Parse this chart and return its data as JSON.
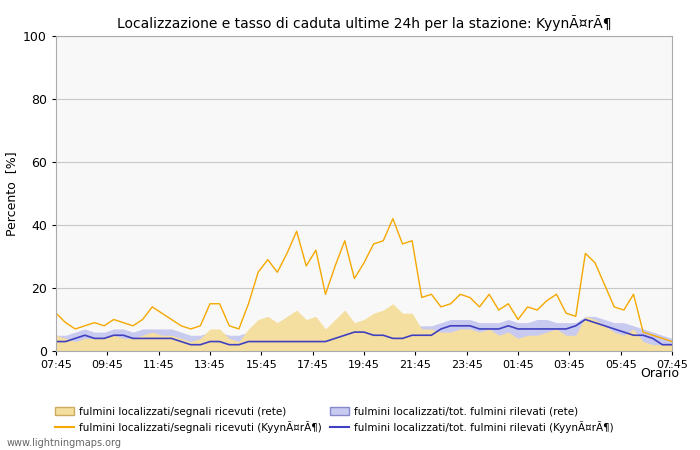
{
  "title": "Localizzazione e tasso di caduta ultime 24h per la stazione: KyynÃ¤rÃ¶",
  "ylabel": "Percento  [%]",
  "xlabel": "Orario",
  "watermark": "www.lightningmaps.org",
  "ylim": [
    0,
    100
  ],
  "xtick_labels": [
    "07:45",
    "09:45",
    "11:45",
    "13:45",
    "15:45",
    "17:45",
    "19:45",
    "21:45",
    "23:45",
    "01:45",
    "03:45",
    "05:45",
    "07:45"
  ],
  "legend": [
    {
      "label": "fulmini localizzati/segnali ricevuti (rete)",
      "color": "#f5dfa0",
      "type": "fill"
    },
    {
      "label": "fulmini localizzati/segnali ricevuti (KyynÃ¤rÃ¶)",
      "color": "#f5a800",
      "type": "line"
    },
    {
      "label": "fulmini localizzati/tot. fulmini rilevati (rete)",
      "color": "#c8caf0",
      "type": "fill"
    },
    {
      "label": "fulmini localizzati/tot. fulmini rilevati (KyynÃ¤rÃ¶)",
      "color": "#4040c0",
      "type": "line"
    }
  ],
  "orange_fill_color": "#f5dfa0",
  "orange_line_color": "#f5a800",
  "blue_fill_color": "#c8caf0",
  "blue_line_color": "#4040c0",
  "grid_color": "#c8c8c8",
  "bg_color": "#ffffff",
  "plot_bg_color": "#f8f8f8",
  "orange_line": [
    12,
    9,
    7,
    8,
    9,
    8,
    10,
    9,
    8,
    10,
    14,
    12,
    10,
    8,
    7,
    8,
    15,
    15,
    8,
    7,
    15,
    25,
    29,
    25,
    31,
    38,
    27,
    32,
    18,
    27,
    35,
    23,
    28,
    34,
    35,
    42,
    34,
    35,
    17,
    18,
    14,
    15,
    18,
    17,
    14,
    18,
    13,
    15,
    10,
    14,
    13,
    16,
    18,
    12,
    11,
    31,
    28,
    21,
    14,
    13,
    18,
    6,
    5,
    4,
    3
  ],
  "orange_fill": [
    5,
    4,
    3,
    4,
    4,
    4,
    5,
    4,
    4,
    5,
    6,
    5,
    5,
    4,
    3,
    4,
    7,
    7,
    4,
    3,
    7,
    10,
    11,
    9,
    11,
    13,
    10,
    11,
    7,
    10,
    13,
    9,
    10,
    12,
    13,
    15,
    12,
    12,
    7,
    7,
    6,
    6,
    7,
    7,
    6,
    7,
    5,
    6,
    4,
    5,
    5,
    6,
    7,
    5,
    5,
    11,
    10,
    8,
    6,
    5,
    7,
    3,
    2,
    2,
    2
  ],
  "blue_line": [
    3,
    3,
    4,
    5,
    4,
    4,
    5,
    5,
    4,
    4,
    4,
    4,
    4,
    3,
    2,
    2,
    3,
    3,
    2,
    2,
    3,
    3,
    3,
    3,
    3,
    3,
    3,
    3,
    3,
    4,
    5,
    6,
    6,
    5,
    5,
    4,
    4,
    5,
    5,
    5,
    7,
    8,
    8,
    8,
    7,
    7,
    7,
    8,
    7,
    7,
    7,
    7,
    7,
    7,
    8,
    10,
    9,
    8,
    7,
    6,
    5,
    5,
    4,
    2,
    2
  ],
  "blue_fill": [
    5,
    5,
    6,
    7,
    6,
    6,
    7,
    7,
    6,
    7,
    7,
    7,
    7,
    6,
    5,
    5,
    6,
    6,
    5,
    5,
    6,
    6,
    6,
    6,
    6,
    7,
    6,
    6,
    6,
    7,
    8,
    8,
    8,
    8,
    8,
    8,
    8,
    8,
    8,
    8,
    9,
    10,
    10,
    10,
    9,
    9,
    9,
    10,
    9,
    9,
    10,
    10,
    9,
    9,
    9,
    11,
    11,
    10,
    9,
    9,
    8,
    7,
    6,
    5,
    4
  ]
}
